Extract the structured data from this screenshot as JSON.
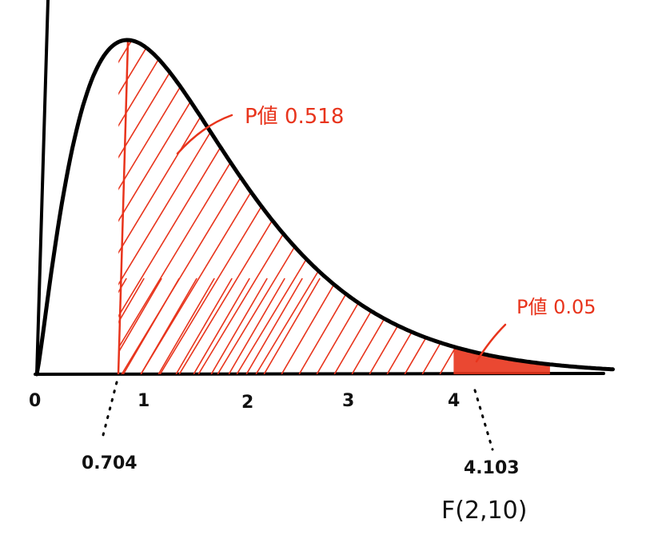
{
  "chart_data": {
    "type": "area",
    "distribution": "F(2,10)",
    "xlim": [
      0,
      5.5
    ],
    "x_ticks": [
      "0",
      "1",
      "2",
      "3",
      "4"
    ],
    "observed_stat_label": "0.704",
    "critical_value_label": "4.103",
    "annotations": {
      "p_value_observed": "P値 0.518",
      "p_value_critical": "P値 0.05"
    },
    "curve_label": "F(2,10)",
    "colors": {
      "curve": "#000000",
      "shade": "#e8341c"
    }
  }
}
